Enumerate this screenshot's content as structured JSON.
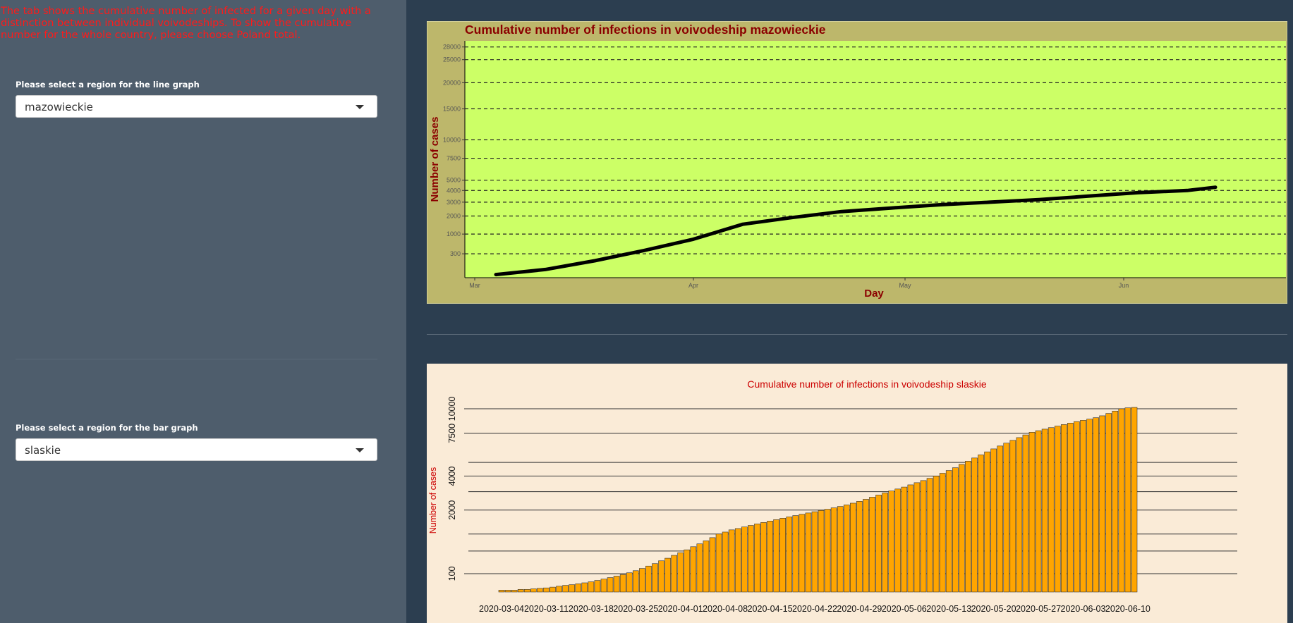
{
  "sidebar": {
    "intro_text": "The tab shows the cumulative number of infected for a given day with a distinction between individual voivodeships. To show the cumulative number for the whole country, please choose Poland total.",
    "line_select": {
      "label": "Please select a region for the line graph",
      "value": "mazowieckie"
    },
    "bar_select": {
      "label": "Please select a region for the bar graph",
      "value": "slaskie"
    }
  },
  "colors": {
    "page_bg": "#2c3e50",
    "sidebar_bg": "#4e5d6c",
    "intro_text": "#ff1a1a",
    "line_panel_outer": "#bdb76b",
    "line_panel_inner": "#ccff66",
    "line_title": "#8b0000",
    "bar_panel": "#faebd7",
    "bar_fill": "#ffa500",
    "bar_title": "#cc0000"
  },
  "chart_data": [
    {
      "type": "line",
      "title": "Cumulative number of infections in voivodeship mazowieckie",
      "xlabel": "Day",
      "ylabel": "Number of cases",
      "x_tick_labels": [
        "Mar",
        "Apr",
        "May",
        "Jun"
      ],
      "y_ticks": [
        300,
        1000,
        2000,
        3000,
        4000,
        5000,
        7500,
        10000,
        15000,
        20000,
        25000,
        28000
      ],
      "ylim": [
        0,
        29500
      ],
      "y_scale": "sqrt",
      "grid": "horizontal dashed",
      "series": [
        {
          "x": [
            "2020-03-04",
            "2020-03-11",
            "2020-03-18",
            "2020-03-25",
            "2020-04-01",
            "2020-04-08",
            "2020-04-15",
            "2020-04-22",
            "2020-04-29",
            "2020-05-06",
            "2020-05-13",
            "2020-05-20",
            "2020-05-27",
            "2020-06-03",
            "2020-06-10",
            "2020-06-14"
          ],
          "y": [
            5,
            35,
            150,
            390,
            780,
            1500,
            1900,
            2300,
            2550,
            2800,
            3000,
            3200,
            3500,
            3800,
            4000,
            4300
          ]
        }
      ]
    },
    {
      "type": "bar",
      "title": "Cumulative number of infections in voivodeship slaskie",
      "xlabel": "",
      "ylabel": "Number of cases",
      "x_tick_labels": [
        "2020-03-04",
        "2020-03-11",
        "2020-03-18",
        "2020-03-25",
        "2020-04-01",
        "2020-04-08",
        "2020-04-15",
        "2020-04-22",
        "2020-04-29",
        "2020-05-06",
        "2020-05-13",
        "2020-05-20",
        "2020-05-27",
        "2020-06-03",
        "2020-06-10"
      ],
      "y_tick_labels": [
        100,
        2000,
        4000,
        7500,
        10000
      ],
      "y_gridlines": [
        100,
        500,
        1000,
        2000,
        3000,
        4000,
        5000,
        7500,
        10000
      ],
      "ylim": [
        0,
        10000
      ],
      "y_scale": "sqrt",
      "start_date": "2020-03-04",
      "values": [
        1,
        1,
        1,
        2,
        2,
        3,
        4,
        5,
        7,
        10,
        13,
        16,
        20,
        25,
        31,
        40,
        50,
        62,
        75,
        90,
        110,
        135,
        165,
        200,
        240,
        290,
        340,
        400,
        460,
        530,
        610,
        690,
        780,
        880,
        1000,
        1070,
        1150,
        1200,
        1260,
        1320,
        1380,
        1440,
        1500,
        1560,
        1620,
        1680,
        1740,
        1800,
        1860,
        1920,
        1980,
        2040,
        2110,
        2180,
        2260,
        2350,
        2450,
        2560,
        2680,
        2800,
        2920,
        3040,
        3160,
        3280,
        3420,
        3560,
        3700,
        3850,
        4000,
        4200,
        4400,
        4600,
        4850,
        5100,
        5350,
        5600,
        5850,
        6100,
        6350,
        6600,
        6850,
        7100,
        7350,
        7600,
        7750,
        7900,
        8050,
        8200,
        8350,
        8500,
        8650,
        8780,
        8900,
        9050,
        9250,
        9500,
        9750,
        10000,
        10100,
        10150
      ]
    }
  ]
}
